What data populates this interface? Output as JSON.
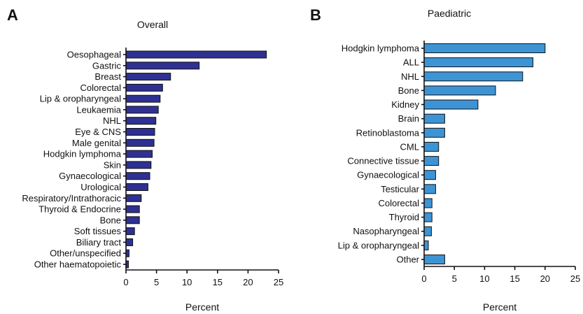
{
  "chart_data": [
    {
      "panel": "A",
      "type": "bar",
      "orientation": "horizontal",
      "title": "Overall",
      "xlabel": "Percent",
      "xlim": [
        0,
        25
      ],
      "xticks": [
        0,
        5,
        10,
        15,
        20,
        25
      ],
      "color": "#2E3192",
      "categories": [
        "Oesophageal",
        "Gastric",
        "Breast",
        "Colorectal",
        "Lip & oropharyngeal",
        "Leukaemia",
        "NHL",
        "Eye & CNS",
        "Male genital",
        "Hodgkin lymphoma",
        "Skin",
        "Gynaecological",
        "Urological",
        "Respiratory/Intrathoracic",
        "Thyroid & Endocrine",
        "Bone",
        "Soft tissues",
        "Biliary tract",
        "Other/unspecified",
        "Other haematopoietic"
      ],
      "values": [
        23.0,
        12.0,
        7.3,
        6.0,
        5.6,
        5.3,
        4.9,
        4.7,
        4.6,
        4.3,
        4.1,
        3.9,
        3.6,
        2.5,
        2.2,
        2.2,
        1.4,
        1.1,
        0.5,
        0.4
      ]
    },
    {
      "panel": "B",
      "type": "bar",
      "orientation": "horizontal",
      "title": "Paediatric",
      "xlabel": "Percent",
      "xlim": [
        0,
        25
      ],
      "xticks": [
        0,
        5,
        10,
        15,
        20,
        25
      ],
      "color": "#3D94D5",
      "categories": [
        "Hodgkin lymphoma",
        "ALL",
        "NHL",
        "Bone",
        "Kidney",
        "Brain",
        "Retinoblastoma",
        "CML",
        "Connective tissue",
        "Gynaecological",
        "Testicular",
        "Colorectal",
        "Thyroid",
        "Nasopharyngeal",
        "Lip & oropharyngeal",
        "Other"
      ],
      "values": [
        20.0,
        18.0,
        16.3,
        11.8,
        8.9,
        3.4,
        3.4,
        2.4,
        2.4,
        1.9,
        1.9,
        1.3,
        1.3,
        1.2,
        0.7,
        3.4
      ]
    }
  ]
}
